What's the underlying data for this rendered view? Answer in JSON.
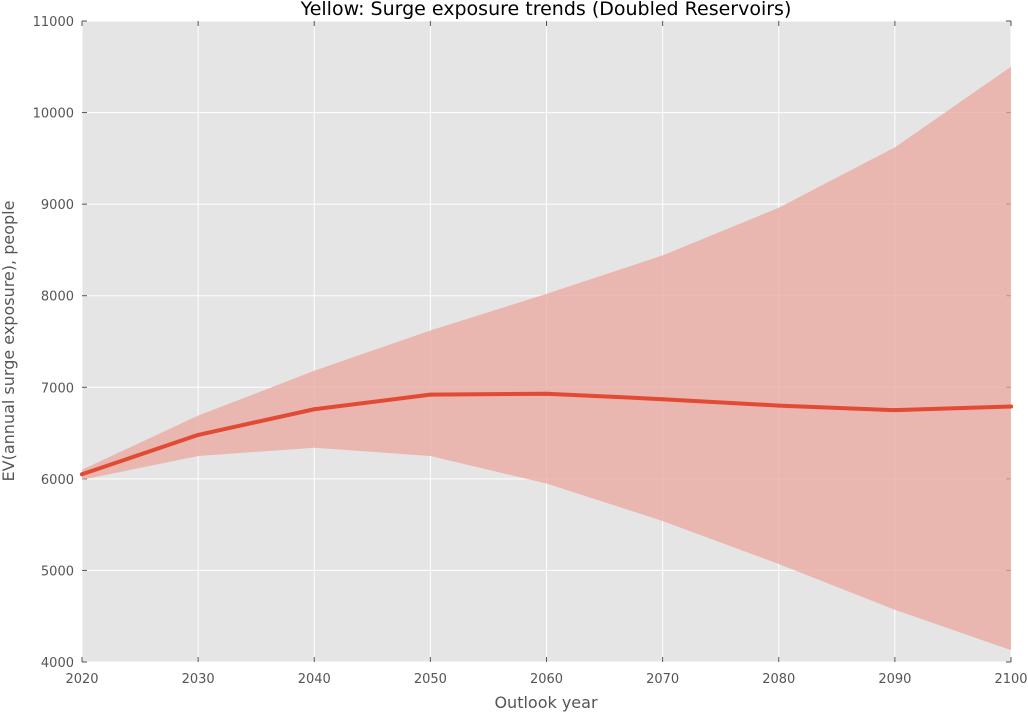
{
  "chart_data": {
    "type": "area",
    "title": "Yellow: Surge exposure trends (Doubled Reservoirs)",
    "xlabel": "Outlook year",
    "ylabel": "EV(annual surge exposure), people",
    "xlim": [
      2020,
      2100
    ],
    "ylim": [
      4000,
      11000
    ],
    "x_ticks": [
      2020,
      2030,
      2040,
      2050,
      2060,
      2070,
      2080,
      2090,
      2100
    ],
    "y_ticks": [
      4000,
      5000,
      6000,
      7000,
      8000,
      9000,
      10000,
      11000
    ],
    "grid": true,
    "x": [
      2020,
      2030,
      2040,
      2050,
      2060,
      2070,
      2080,
      2090,
      2100
    ],
    "series": [
      {
        "values": [
          6050,
          6480,
          6760,
          6920,
          6930,
          6870,
          6800,
          6750,
          6790
        ],
        "lower": [
          5990,
          6250,
          6340,
          6250,
          5950,
          5540,
          5070,
          4570,
          4130
        ],
        "upper": [
          6100,
          6690,
          7180,
          7620,
          8020,
          8440,
          8960,
          9620,
          10500
        ],
        "color": "#e24a33",
        "band_color": "#e9a69d"
      }
    ],
    "background_color": "#e5e5e5",
    "grid_color": "#ffffff"
  }
}
